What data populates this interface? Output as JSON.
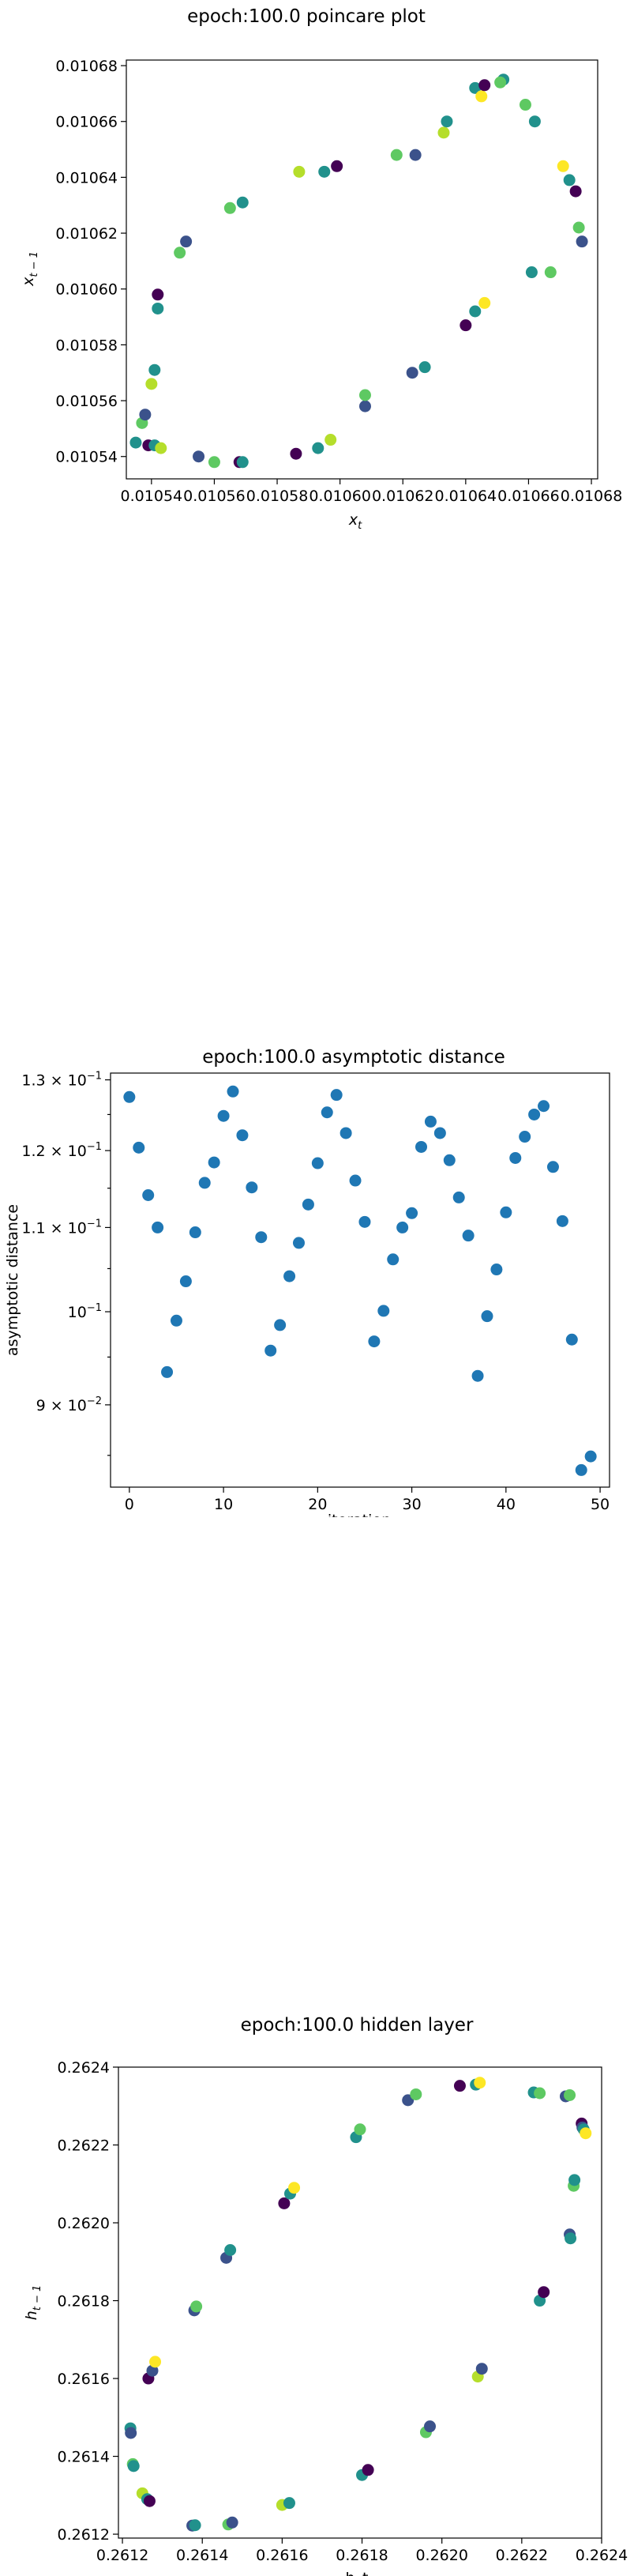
{
  "colors": {
    "scatter_blue": "#1f77b4",
    "viridis": [
      "#440154",
      "#3b528b",
      "#21918c",
      "#5ec962",
      "#fde725"
    ]
  },
  "chart_data": [
    {
      "type": "scatter",
      "title": "epoch:100.0 poincare plot",
      "xlabel": "x_t",
      "ylabel": "x_{t-1}",
      "xlim": [
        0.010532,
        0.010682
      ],
      "ylim": [
        0.010532,
        0.010682
      ],
      "xticks": [
        "0.01054",
        "0.01056",
        "0.01058",
        "0.01060",
        "0.01062",
        "0.01064",
        "0.01066",
        "0.01068"
      ],
      "yticks": [
        "0.01054",
        "0.01056",
        "0.01058",
        "0.01060",
        "0.01062",
        "0.01064",
        "0.01066",
        "0.01068"
      ],
      "xtick_values": [
        0.01054,
        0.01056,
        0.01058,
        0.0106,
        0.01062,
        0.01064,
        0.01066,
        0.01068
      ],
      "ytick_values": [
        0.01054,
        0.01056,
        0.01058,
        0.0106,
        0.01062,
        0.01064,
        0.01066,
        0.01068
      ],
      "color_map": "viridis",
      "points": [
        [
          0.010535,
          0.010545,
          "#21918c"
        ],
        [
          0.010537,
          0.010552,
          "#5ec962"
        ],
        [
          0.010538,
          0.010555,
          "#3b528b"
        ],
        [
          0.010539,
          0.010544,
          "#440154"
        ],
        [
          0.010541,
          0.010544,
          "#21918c"
        ],
        [
          0.01054,
          0.010566,
          "#b5de2b"
        ],
        [
          0.010541,
          0.010571,
          "#21918c"
        ],
        [
          0.010542,
          0.010593,
          "#21918c"
        ],
        [
          0.010542,
          0.010598,
          "#440154"
        ],
        [
          0.010543,
          0.010543,
          "#b5de2b"
        ],
        [
          0.010549,
          0.010613,
          "#5ec962"
        ],
        [
          0.010551,
          0.010617,
          "#3b528b"
        ],
        [
          0.010555,
          0.01054,
          "#3b528b"
        ],
        [
          0.01056,
          0.010538,
          "#5ec962"
        ],
        [
          0.010565,
          0.010629,
          "#5ec962"
        ],
        [
          0.010568,
          0.010538,
          "#440154"
        ],
        [
          0.010569,
          0.010538,
          "#21918c"
        ],
        [
          0.010569,
          0.010631,
          "#21918c"
        ],
        [
          0.010586,
          0.010541,
          "#440154"
        ],
        [
          0.010587,
          0.010642,
          "#b5de2b"
        ],
        [
          0.010593,
          0.010543,
          "#21918c"
        ],
        [
          0.010595,
          0.010642,
          "#21918c"
        ],
        [
          0.010597,
          0.010546,
          "#b5de2b"
        ],
        [
          0.010599,
          0.010644,
          "#440154"
        ],
        [
          0.010608,
          0.010558,
          "#3b528b"
        ],
        [
          0.010608,
          0.010562,
          "#5ec962"
        ],
        [
          0.010618,
          0.010648,
          "#5ec962"
        ],
        [
          0.010623,
          0.01057,
          "#3b528b"
        ],
        [
          0.010624,
          0.010648,
          "#3b528b"
        ],
        [
          0.010627,
          0.010572,
          "#21918c"
        ],
        [
          0.010633,
          0.010656,
          "#b5de2b"
        ],
        [
          0.010634,
          0.01066,
          "#21918c"
        ],
        [
          0.01064,
          0.010587,
          "#440154"
        ],
        [
          0.010643,
          0.010592,
          "#21918c"
        ],
        [
          0.010643,
          0.010672,
          "#21918c"
        ],
        [
          0.010645,
          0.010669,
          "#fde725"
        ],
        [
          0.010646,
          0.010595,
          "#fde725"
        ],
        [
          0.010646,
          0.010673,
          "#440154"
        ],
        [
          0.010652,
          0.010675,
          "#21918c"
        ],
        [
          0.010651,
          0.010674,
          "#5ec962"
        ],
        [
          0.010659,
          0.010666,
          "#5ec962"
        ],
        [
          0.010661,
          0.010606,
          "#21918c"
        ],
        [
          0.010662,
          0.01066,
          "#21918c"
        ],
        [
          0.010667,
          0.010606,
          "#5ec962"
        ],
        [
          0.010671,
          0.010644,
          "#fde725"
        ],
        [
          0.010673,
          0.010639,
          "#21918c"
        ],
        [
          0.010675,
          0.010635,
          "#440154"
        ],
        [
          0.010676,
          0.010622,
          "#5ec962"
        ],
        [
          0.010677,
          0.010617,
          "#3b528b"
        ]
      ]
    },
    {
      "type": "scatter",
      "title": "epoch:100.0 asymptotic distance",
      "xlabel": "iteration",
      "ylabel": "asymptotic distance",
      "xlim": [
        -2,
        51
      ],
      "ylim": [
        0.082,
        0.131
      ],
      "yscale": "log",
      "xticks": [
        "0",
        "10",
        "20",
        "30",
        "40",
        "50"
      ],
      "xtick_values": [
        0,
        10,
        20,
        30,
        40,
        50
      ],
      "yticks": [
        "1.3 × 10^-1",
        "1.2 × 10^-1",
        "1.1 × 10^-1",
        "10^-1",
        "9 × 10^-2"
      ],
      "ytick_values": [
        0.13,
        0.12,
        0.11,
        0.1,
        0.09
      ],
      "x": [
        0,
        1,
        2,
        3,
        4,
        5,
        6,
        7,
        8,
        9,
        10,
        11,
        12,
        13,
        14,
        15,
        16,
        17,
        18,
        19,
        20,
        21,
        22,
        23,
        24,
        25,
        26,
        27,
        28,
        29,
        30,
        31,
        32,
        33,
        34,
        35,
        36,
        37,
        38,
        39,
        40,
        41,
        42,
        43,
        44,
        45,
        46,
        47,
        48,
        49
      ],
      "y": [
        0.1275,
        0.1204,
        0.1141,
        0.11,
        0.0934,
        0.099,
        0.1035,
        0.1094,
        0.1157,
        0.1184,
        0.1248,
        0.1283,
        0.1221,
        0.1151,
        0.1088,
        0.0957,
        0.0985,
        0.1041,
        0.1081,
        0.1129,
        0.1183,
        0.1253,
        0.1278,
        0.1224,
        0.116,
        0.1107,
        0.0967,
        0.1001,
        0.1061,
        0.11,
        0.1118,
        0.1205,
        0.124,
        0.1224,
        0.1187,
        0.1138,
        0.109,
        0.093,
        0.0995,
        0.1049,
        0.1119,
        0.119,
        0.1219,
        0.125,
        0.1262,
        0.1178,
        0.1108,
        0.0969,
        0.0836,
        0.0849
      ]
    },
    {
      "type": "scatter",
      "title": "epoch:100.0 hidden layer",
      "xlabel": "h_t",
      "ylabel": "h_{t-1}",
      "xlim": [
        0.26119,
        0.2624
      ],
      "ylim": [
        0.26119,
        0.2624
      ],
      "xticks": [
        "0.2612",
        "0.2614",
        "0.2616",
        "0.2618",
        "0.2620",
        "0.2622",
        "0.2624"
      ],
      "yticks": [
        "0.2612",
        "0.2614",
        "0.2616",
        "0.2618",
        "0.2620",
        "0.2622",
        "0.2624"
      ],
      "xtick_values": [
        0.2612,
        0.2614,
        0.2616,
        0.2618,
        0.262,
        0.2622,
        0.2624
      ],
      "ytick_values": [
        0.2612,
        0.2614,
        0.2616,
        0.2618,
        0.262,
        0.2622,
        0.2624
      ],
      "color_map": "viridis",
      "points": [
        [
          0.26122,
          0.261472,
          "#21918c"
        ],
        [
          0.261221,
          0.26146,
          "#3b528b"
        ],
        [
          0.261226,
          0.26138,
          "#5ec962"
        ],
        [
          0.261228,
          0.261375,
          "#21918c"
        ],
        [
          0.26125,
          0.261305,
          "#b5de2b"
        ],
        [
          0.261262,
          0.26129,
          "#21918c"
        ],
        [
          0.261268,
          0.261285,
          "#440154"
        ],
        [
          0.261265,
          0.2616,
          "#440154"
        ],
        [
          0.261275,
          0.26162,
          "#3b528b"
        ],
        [
          0.261282,
          0.261643,
          "#fde725"
        ],
        [
          0.261375,
          0.261222,
          "#3b528b"
        ],
        [
          0.261382,
          0.261223,
          "#21918c"
        ],
        [
          0.26138,
          0.261775,
          "#3b528b"
        ],
        [
          0.261385,
          0.261785,
          "#5ec962"
        ],
        [
          0.261465,
          0.261225,
          "#5ec962"
        ],
        [
          0.261475,
          0.26123,
          "#3b528b"
        ],
        [
          0.26146,
          0.26191,
          "#3b528b"
        ],
        [
          0.26147,
          0.26193,
          "#21918c"
        ],
        [
          0.2616,
          0.261275,
          "#b5de2b"
        ],
        [
          0.261618,
          0.26128,
          "#21918c"
        ],
        [
          0.261605,
          0.26205,
          "#440154"
        ],
        [
          0.26162,
          0.262075,
          "#21918c"
        ],
        [
          0.26163,
          0.26209,
          "#fde725"
        ],
        [
          0.261785,
          0.26222,
          "#21918c"
        ],
        [
          0.261795,
          0.26224,
          "#5ec962"
        ],
        [
          0.2618,
          0.261352,
          "#21918c"
        ],
        [
          0.261815,
          0.261365,
          "#440154"
        ],
        [
          0.261915,
          0.262315,
          "#3b528b"
        ],
        [
          0.261935,
          0.26233,
          "#5ec962"
        ],
        [
          0.26196,
          0.261462,
          "#5ec962"
        ],
        [
          0.26197,
          0.261477,
          "#3b528b"
        ],
        [
          0.262045,
          0.262352,
          "#440154"
        ],
        [
          0.262085,
          0.262355,
          "#21918c"
        ],
        [
          0.262095,
          0.26236,
          "#fde725"
        ],
        [
          0.26209,
          0.261605,
          "#b5de2b"
        ],
        [
          0.2621,
          0.261625,
          "#3b528b"
        ],
        [
          0.26223,
          0.262335,
          "#21918c"
        ],
        [
          0.262245,
          0.262333,
          "#5ec962"
        ],
        [
          0.262245,
          0.2618,
          "#21918c"
        ],
        [
          0.262255,
          0.261822,
          "#440154"
        ],
        [
          0.26231,
          0.262325,
          "#3b528b"
        ],
        [
          0.26232,
          0.262328,
          "#5ec962"
        ],
        [
          0.26232,
          0.26197,
          "#3b528b"
        ],
        [
          0.262322,
          0.26196,
          "#21918c"
        ],
        [
          0.26233,
          0.262095,
          "#5ec962"
        ],
        [
          0.262332,
          0.26211,
          "#21918c"
        ],
        [
          0.26235,
          0.262255,
          "#440154"
        ],
        [
          0.262352,
          0.262245,
          "#3b528b"
        ],
        [
          0.262355,
          0.26224,
          "#21918c"
        ],
        [
          0.26236,
          0.26223,
          "#fde725"
        ]
      ]
    }
  ]
}
